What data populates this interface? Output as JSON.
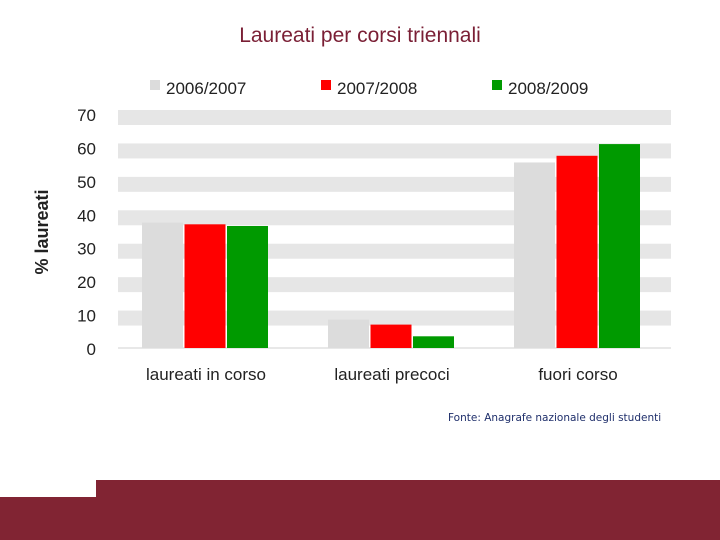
{
  "slide": {
    "title": "Laureati per corsi triennali",
    "source": "Fonte: Anagrafe nazionale degli studenti"
  },
  "colors": {
    "accent": "#812433",
    "title": "#7a1f35",
    "grid_band": "#e6e6e6"
  },
  "chart_data": {
    "type": "bar",
    "title": "",
    "xlabel": "",
    "ylabel": "% laureati",
    "ylim": [
      0,
      70
    ],
    "yticks": [
      0,
      10,
      20,
      30,
      40,
      50,
      60,
      70
    ],
    "grid": true,
    "legend": "top",
    "categories": [
      "laureati in corso",
      "laureati precoci",
      "fuori corso"
    ],
    "series": [
      {
        "name": "2006/2007",
        "color": "#dcdcdc",
        "values": [
          37.5,
          8.5,
          55.5
        ]
      },
      {
        "name": "2007/2008",
        "color": "#ff0000",
        "values": [
          37,
          7,
          57.5
        ]
      },
      {
        "name": "2008/2009",
        "color": "#009a00",
        "values": [
          36.5,
          3.5,
          61
        ]
      }
    ]
  }
}
